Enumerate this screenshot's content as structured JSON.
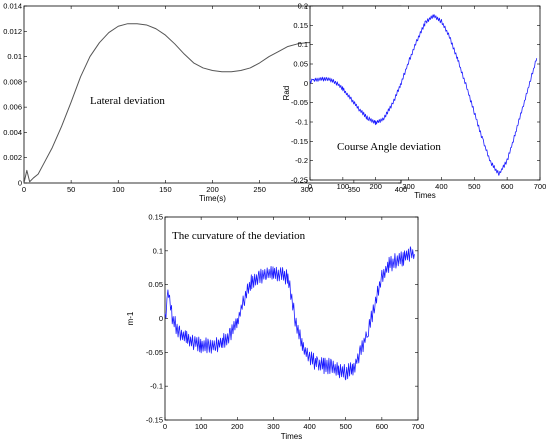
{
  "chart_data": [
    {
      "type": "line",
      "title": "",
      "annotation": "Lateral deviation",
      "xlabel": "Time(s)",
      "ylabel": "",
      "xlim": [
        0,
        400
      ],
      "ylim": [
        0,
        0.014
      ],
      "xticks": [
        "0",
        "50",
        "100",
        "150",
        "200",
        "250",
        "300",
        "350",
        "400"
      ],
      "yticks": [
        "0",
        "0.002",
        "0.004",
        "0.006",
        "0.008",
        "0.01",
        "0.012",
        "0.014"
      ],
      "grid": false,
      "line_color": "#555555",
      "series": [
        {
          "x": [
            0,
            3,
            6,
            10,
            15,
            20,
            30,
            40,
            50,
            60,
            70,
            80,
            90,
            100,
            110,
            120,
            130,
            140,
            150,
            160,
            170,
            180,
            190,
            200,
            210,
            220,
            230,
            240,
            250,
            260,
            270,
            280,
            290,
            300,
            310,
            320,
            330,
            340,
            350,
            360,
            370,
            380,
            390,
            400
          ],
          "values": [
            0.0,
            0.001,
            0.0001,
            0.0004,
            0.0007,
            0.0014,
            0.0028,
            0.0045,
            0.0064,
            0.0084,
            0.01,
            0.0111,
            0.0119,
            0.0124,
            0.0126,
            0.0126,
            0.0125,
            0.0122,
            0.0117,
            0.011,
            0.0102,
            0.0095,
            0.0091,
            0.0089,
            0.0088,
            0.0088,
            0.0089,
            0.0091,
            0.0095,
            0.01,
            0.0104,
            0.0108,
            0.011,
            0.0111,
            0.0111,
            0.011,
            0.0107,
            0.0104,
            0.01,
            0.0096,
            0.0093,
            0.0092,
            0.0091,
            0.0091
          ]
        }
      ]
    },
    {
      "type": "line",
      "title": "",
      "annotation": "Course Angle deviation",
      "xlabel": "Times",
      "ylabel": "Rad",
      "xlim": [
        0,
        700
      ],
      "ylim": [
        -0.25,
        0.2
      ],
      "xticks": [
        "0",
        "100",
        "200",
        "300",
        "400",
        "500",
        "600",
        "700"
      ],
      "yticks": [
        "-0.25",
        "-0.2",
        "-0.15",
        "-0.1",
        "-0.05",
        "0",
        "0.05",
        "0.1",
        "0.15",
        "0.2"
      ],
      "grid": false,
      "line_color": "#1a1aff",
      "series": [
        {
          "x": [
            0,
            25,
            50,
            75,
            100,
            125,
            150,
            175,
            200,
            225,
            250,
            275,
            300,
            325,
            350,
            375,
            400,
            425,
            450,
            475,
            500,
            525,
            550,
            575,
            600,
            625,
            650,
            675,
            690
          ],
          "values": [
            0.005,
            0.01,
            0.012,
            0.005,
            -0.015,
            -0.04,
            -0.068,
            -0.09,
            -0.103,
            -0.09,
            -0.055,
            -0.005,
            0.055,
            0.11,
            0.155,
            0.175,
            0.16,
            0.12,
            0.06,
            -0.005,
            -0.075,
            -0.145,
            -0.205,
            -0.235,
            -0.2,
            -0.13,
            -0.055,
            0.02,
            0.065
          ]
        }
      ]
    },
    {
      "type": "line",
      "title": "",
      "annotation": "The curvature of the deviation",
      "xlabel": "Times",
      "ylabel": "m-1",
      "xlim": [
        0,
        700
      ],
      "ylim": [
        -0.15,
        0.15
      ],
      "xticks": [
        "0",
        "100",
        "200",
        "300",
        "400",
        "500",
        "600",
        "700"
      ],
      "yticks": [
        "-0.15",
        "-0.1",
        "-0.05",
        "0",
        "0.05",
        "0.1",
        "0.15"
      ],
      "grid": false,
      "line_color": "#1a1aff",
      "series": [
        {
          "x": [
            0,
            10,
            20,
            40,
            60,
            80,
            100,
            120,
            140,
            160,
            180,
            200,
            220,
            240,
            260,
            280,
            300,
            320,
            340,
            360,
            380,
            400,
            420,
            440,
            460,
            480,
            500,
            520,
            540,
            560,
            580,
            600,
            620,
            640,
            660,
            680,
            690
          ],
          "values": [
            0.0,
            0.04,
            0.0,
            -0.02,
            -0.03,
            -0.035,
            -0.04,
            -0.04,
            -0.04,
            -0.035,
            -0.025,
            -0.005,
            0.03,
            0.055,
            0.06,
            0.065,
            0.07,
            0.065,
            0.06,
            0.0,
            -0.04,
            -0.06,
            -0.065,
            -0.07,
            -0.07,
            -0.075,
            -0.08,
            -0.075,
            -0.05,
            -0.02,
            0.02,
            0.06,
            0.08,
            0.085,
            0.09,
            0.095,
            0.095
          ]
        }
      ]
    }
  ]
}
